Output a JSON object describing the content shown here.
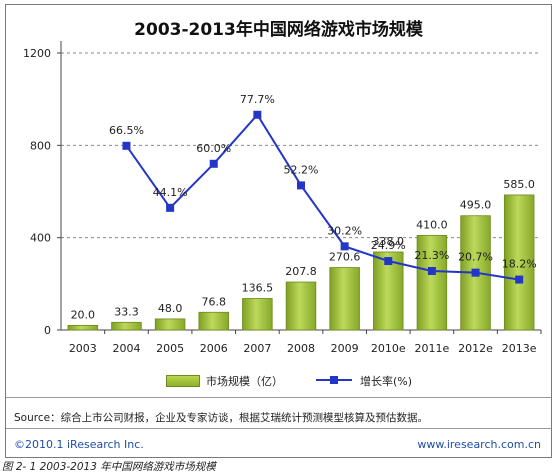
{
  "chart_data": {
    "type": "bar",
    "title": "2003-2013年中国网络游戏市场规模",
    "categories": [
      "2003",
      "2004",
      "2005",
      "2006",
      "2007",
      "2008",
      "2009",
      "2010e",
      "2011e",
      "2012e",
      "2013e"
    ],
    "series": [
      {
        "name": "市场规模（亿）",
        "type": "bar",
        "axis": "left",
        "values": [
          20.0,
          33.3,
          48.0,
          76.8,
          136.5,
          207.8,
          270.6,
          338.0,
          410.0,
          495.0,
          585.0
        ],
        "labels": [
          "20.0",
          "33.3",
          "48.0",
          "76.8",
          "136.5",
          "207.8",
          "270.6",
          "338.0",
          "410.0",
          "495.0",
          "585.0"
        ],
        "color": "#9bbf36"
      },
      {
        "name": "增长率(%)",
        "type": "line",
        "axis": "right",
        "values": [
          null,
          66.5,
          44.1,
          60.0,
          77.7,
          52.2,
          30.2,
          24.9,
          21.3,
          20.7,
          18.2
        ],
        "labels": [
          "",
          "66.5%",
          "44.1%",
          "60.0%",
          "77.7%",
          "52.2%",
          "30.2%",
          "24.9%",
          "21.3%",
          "20.7%",
          "18.2%"
        ],
        "color": "#2336c8"
      }
    ],
    "y_ticks": [
      "0",
      "400",
      "800",
      "1200"
    ],
    "ylim": [
      0,
      1200
    ],
    "y2lim": [
      0,
      100
    ],
    "grid": "horizontal-dashed",
    "legend": "bottom"
  },
  "source_text": "Source：综合上市公司财报，企业及专家访谈，根据艾瑞统计预测模型核算及预估数据。",
  "footer_left": "©2010.1 iResearch Inc.",
  "footer_right": "www.iresearch.com.cn",
  "caption": "图 2- 1 2003-2013 年中国网络游戏市场规模"
}
